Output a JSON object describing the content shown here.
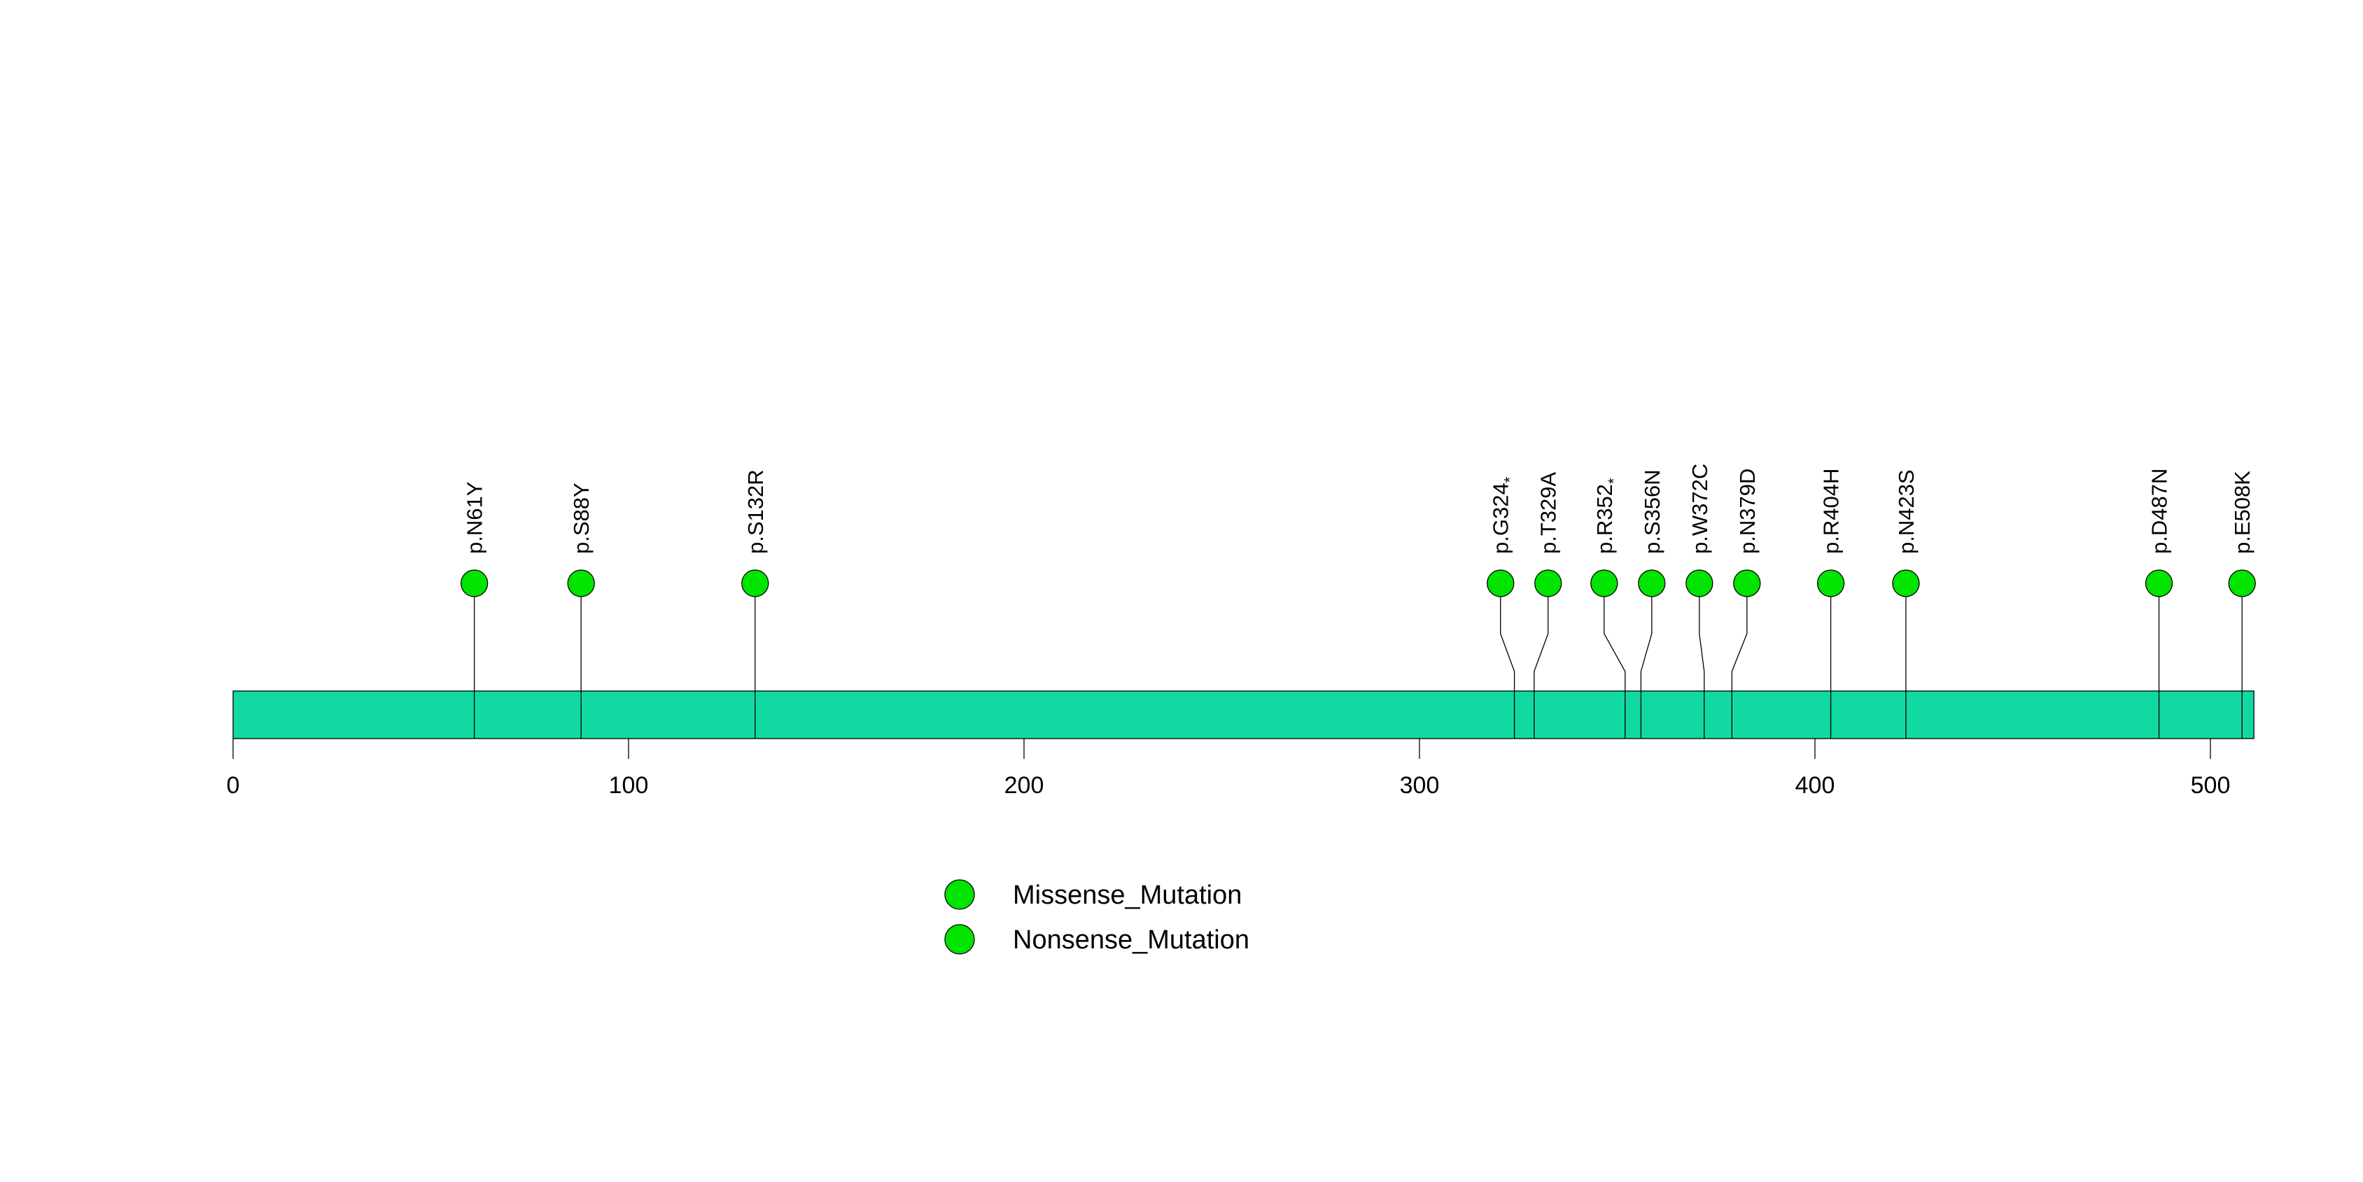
{
  "chart_data": {
    "type": "lollipop",
    "title": "",
    "description": "Protein lollipop mutation plot",
    "protein_bar": {
      "start": 0,
      "end": 511,
      "color": "#11D9A1",
      "border_color": "#000000"
    },
    "x_axis": {
      "ticks": [
        0,
        100,
        200,
        300,
        400,
        500
      ],
      "range": [
        0,
        511
      ],
      "label": ""
    },
    "mutations": [
      {
        "label": "p.N61Y",
        "position": 61,
        "type": "Missense_Mutation"
      },
      {
        "label": "p.S88Y",
        "position": 88,
        "type": "Missense_Mutation"
      },
      {
        "label": "p.S132R",
        "position": 132,
        "type": "Missense_Mutation"
      },
      {
        "label": "p.G324*",
        "position": 324,
        "type": "Nonsense_Mutation"
      },
      {
        "label": "p.T329A",
        "position": 329,
        "type": "Missense_Mutation"
      },
      {
        "label": "p.R352*",
        "position": 352,
        "type": "Nonsense_Mutation"
      },
      {
        "label": "p.S356N",
        "position": 356,
        "type": "Missense_Mutation"
      },
      {
        "label": "p.W372C",
        "position": 372,
        "type": "Missense_Mutation"
      },
      {
        "label": "p.N379D",
        "position": 379,
        "type": "Missense_Mutation"
      },
      {
        "label": "p.R404H",
        "position": 404,
        "type": "Missense_Mutation"
      },
      {
        "label": "p.N423S",
        "position": 423,
        "type": "Missense_Mutation"
      },
      {
        "label": "p.D487N",
        "position": 487,
        "type": "Missense_Mutation"
      },
      {
        "label": "p.E508K",
        "position": 508,
        "type": "Missense_Mutation"
      }
    ],
    "marker": {
      "fill_color": "#00E400",
      "stroke_color": "#000000"
    },
    "legend": [
      {
        "label": "Missense_Mutation",
        "color": "#00E400"
      },
      {
        "label": "Nonsense_Mutation",
        "color": "#00E400"
      }
    ],
    "legend_position": "bottom-center",
    "grid": false
  }
}
